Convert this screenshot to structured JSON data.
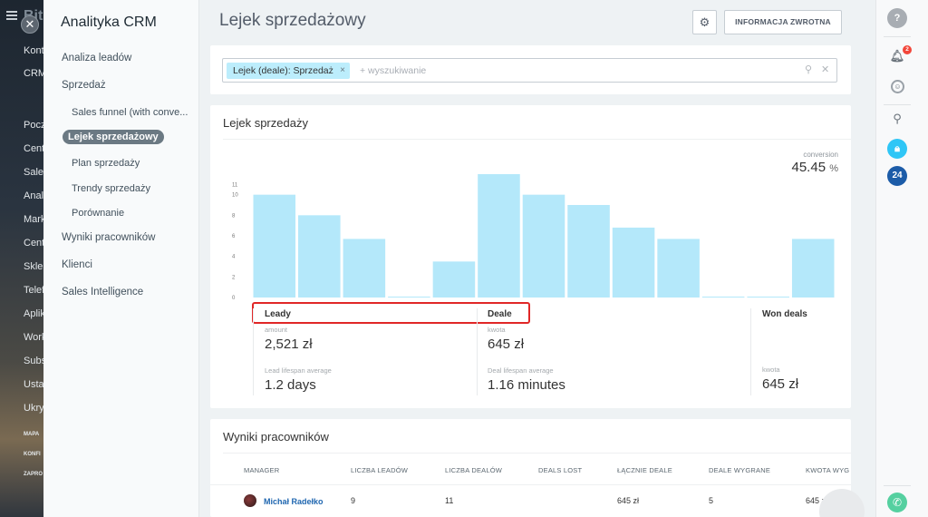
{
  "background": {
    "logo": "Bit",
    "items": [
      "Kont",
      "CRM",
      "Pocz",
      "Cent",
      "Sales",
      "Anali",
      "Mark",
      "Cent",
      "Sklep",
      "Telef",
      "Aplik",
      "Work",
      "Subs",
      "Usta",
      "Ukry"
    ],
    "small_items": [
      "MAPA",
      "KONFI",
      "ZAPRO"
    ]
  },
  "sidebar": {
    "title": "Analityka CRM",
    "items": [
      {
        "label": "Analiza leadów"
      },
      {
        "label": "Sprzedaż"
      },
      {
        "label": "Sales funnel (with conve..."
      },
      {
        "label": "Lejek sprzedażowy"
      },
      {
        "label": "Plan sprzedaży"
      },
      {
        "label": "Trendy sprzedaży"
      },
      {
        "label": "Porównanie"
      },
      {
        "label": "Wyniki pracowników"
      },
      {
        "label": "Klienci"
      },
      {
        "label": "Sales Intelligence"
      }
    ]
  },
  "header": {
    "title": "Lejek sprzedażowy",
    "feedback_label": "INFORMACJA ZWROTNA"
  },
  "filter": {
    "chip_label": "Lejek (deale): Sprzedaż",
    "placeholder": "+ wyszukiwanie"
  },
  "funnel": {
    "title": "Lejek sprzedaży",
    "conversion_label": "conversion",
    "conversion_value": "45.45",
    "conversion_unit": "%",
    "sections": {
      "leady": {
        "title": "Leady",
        "label1": "amount",
        "value1": "2,521 zł",
        "label2": "Lead lifespan average",
        "value2": "1.2 days"
      },
      "deale": {
        "title": "Deale",
        "label1": "kwota",
        "value1": "645 zł",
        "label2": "Deal lifespan average",
        "value2": "1.16 minutes"
      },
      "won": {
        "title": "Won deals",
        "label1": "kwota",
        "value1": "645 zł"
      }
    }
  },
  "chart_data": {
    "type": "bar",
    "ylim": [
      0,
      12
    ],
    "yticks": [
      "0",
      "2",
      "4",
      "6",
      "8",
      "10",
      "11"
    ],
    "values": [
      10,
      8,
      5.7,
      0,
      3.5,
      12,
      10,
      9,
      6.8,
      5.7,
      0,
      0,
      5.7
    ],
    "color": "#b4e8fa"
  },
  "workers": {
    "title": "Wyniki pracowników",
    "columns": [
      "MANAGER",
      "LICZBA LEADÓW",
      "LICZBA DEALÓW",
      "DEALS LOST",
      "ŁĄCZNIE DEALE",
      "DEALE WYGRANE",
      "KWOTA WYG"
    ],
    "rows": [
      {
        "manager": "Michał Radełko",
        "leads": "9",
        "deals": "11",
        "lost": "",
        "total": "645 zł",
        "won": "5",
        "amount": "645 zł"
      }
    ]
  },
  "rightbar": {
    "notification_count": "2",
    "b24_label": "24"
  }
}
